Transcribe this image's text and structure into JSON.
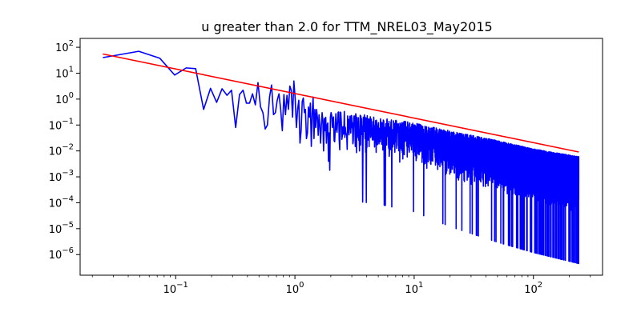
{
  "chart_data": {
    "type": "line",
    "title": "u greater than 2.0  for TTM_NREL03_May2015",
    "xlabel": "",
    "ylabel": "",
    "x_scale": "log",
    "y_scale": "log",
    "xlim": [
      0.0158,
      380
    ],
    "ylim": [
      1.6e-07,
      220
    ],
    "grid": false,
    "legend": "none",
    "x_ticks": [
      {
        "value": 0.1,
        "label": "10^-1"
      },
      {
        "value": 1,
        "label": "10^0"
      },
      {
        "value": 10,
        "label": "10^1"
      },
      {
        "value": 100,
        "label": "10^2"
      }
    ],
    "y_ticks": [
      {
        "value": 1e-06,
        "label": "10^-6"
      },
      {
        "value": 1e-05,
        "label": "10^-5"
      },
      {
        "value": 0.0001,
        "label": "10^-4"
      },
      {
        "value": 0.001,
        "label": "10^-3"
      },
      {
        "value": 0.01,
        "label": "10^-2"
      },
      {
        "value": 0.1,
        "label": "10^-1"
      },
      {
        "value": 1,
        "label": "10^0"
      },
      {
        "value": 10,
        "label": "10^1"
      },
      {
        "value": 100,
        "label": "10^2"
      }
    ],
    "series": [
      {
        "color": "#0000ff",
        "style": "spectrum",
        "x": [
          0.0245,
          0.049,
          0.0735,
          0.098,
          0.1225,
          0.147,
          0.1715,
          0.196,
          0.2205,
          0.245,
          0.2695,
          0.294,
          0.3185,
          0.343,
          0.3675,
          0.392,
          0.4165,
          0.441,
          0.4655,
          0.49,
          0.5145,
          0.539,
          0.5635,
          0.588,
          0.6125,
          0.637,
          0.6615,
          0.686,
          0.7105,
          0.735,
          0.7595,
          0.784,
          0.8085,
          0.833,
          0.8575,
          0.882,
          0.9065,
          0.931,
          0.9555,
          0.98,
          1.0045,
          1.029,
          1.0535,
          1.078,
          1.1025,
          1.127,
          1.1515,
          1.176,
          1.2005,
          1.225,
          1.2495,
          1.274,
          1.2985,
          1.323,
          1.3475,
          1.372,
          1.3965,
          1.421,
          1.4455,
          1.47,
          1.4945,
          1.519,
          1.5435,
          1.568,
          1.5925,
          1.617,
          1.6415,
          1.666,
          1.6905,
          1.715,
          1.7395,
          1.764,
          1.7885,
          1.813,
          1.8375,
          1.862,
          1.8865,
          1.911,
          1.9355,
          1.96,
          1.9845,
          2.009
        ],
        "y": [
          40,
          70,
          38,
          8.5,
          16,
          15,
          0.4,
          2.6,
          0.75,
          2.5,
          1.4,
          2.2,
          0.08,
          1.5,
          2.2,
          0.7,
          0.7,
          1.6,
          0.6,
          4.3,
          0.5,
          0.3,
          0.07,
          0.1,
          1.2,
          3.5,
          0.25,
          0.3,
          0.9,
          1.6,
          0.4,
          0.06,
          1.5,
          0.25,
          1.4,
          0.4,
          3.2,
          2.2,
          0.2,
          5.0,
          1.1,
          0.08,
          0.4,
          0.9,
          0.02,
          0.06,
          0.8,
          1.1,
          0.3,
          0.4,
          0.03,
          0.05,
          0.5,
          0.2,
          0.7,
          0.015,
          0.3,
          1.2,
          0.03,
          0.4,
          0.08,
          0.4,
          0.2,
          0.04,
          0.25,
          0.1,
          0.02,
          0.09,
          0.3,
          0.15,
          0.01,
          0.18,
          0.06,
          0.2,
          0.02,
          0.1,
          0.12,
          0.004,
          0.05,
          0.0018,
          0.2,
          0.3
        ]
      },
      {
        "color": "#ff0000",
        "style": "fit",
        "x": [
          0.0245,
          240
        ],
        "y": [
          55,
          0.0091
        ]
      }
    ],
    "noise_envelope": {
      "x": [
        2.0,
        5,
        10,
        20,
        50,
        100,
        240
      ],
      "upper": [
        0.45,
        0.2,
        0.12,
        0.06,
        0.025,
        0.012,
        0.006
      ],
      "lower": [
        0.001,
        0.0006,
        0.0003,
        8e-05,
        2e-05,
        8e-06,
        3e-06
      ],
      "min_dip": 4e-07
    }
  }
}
